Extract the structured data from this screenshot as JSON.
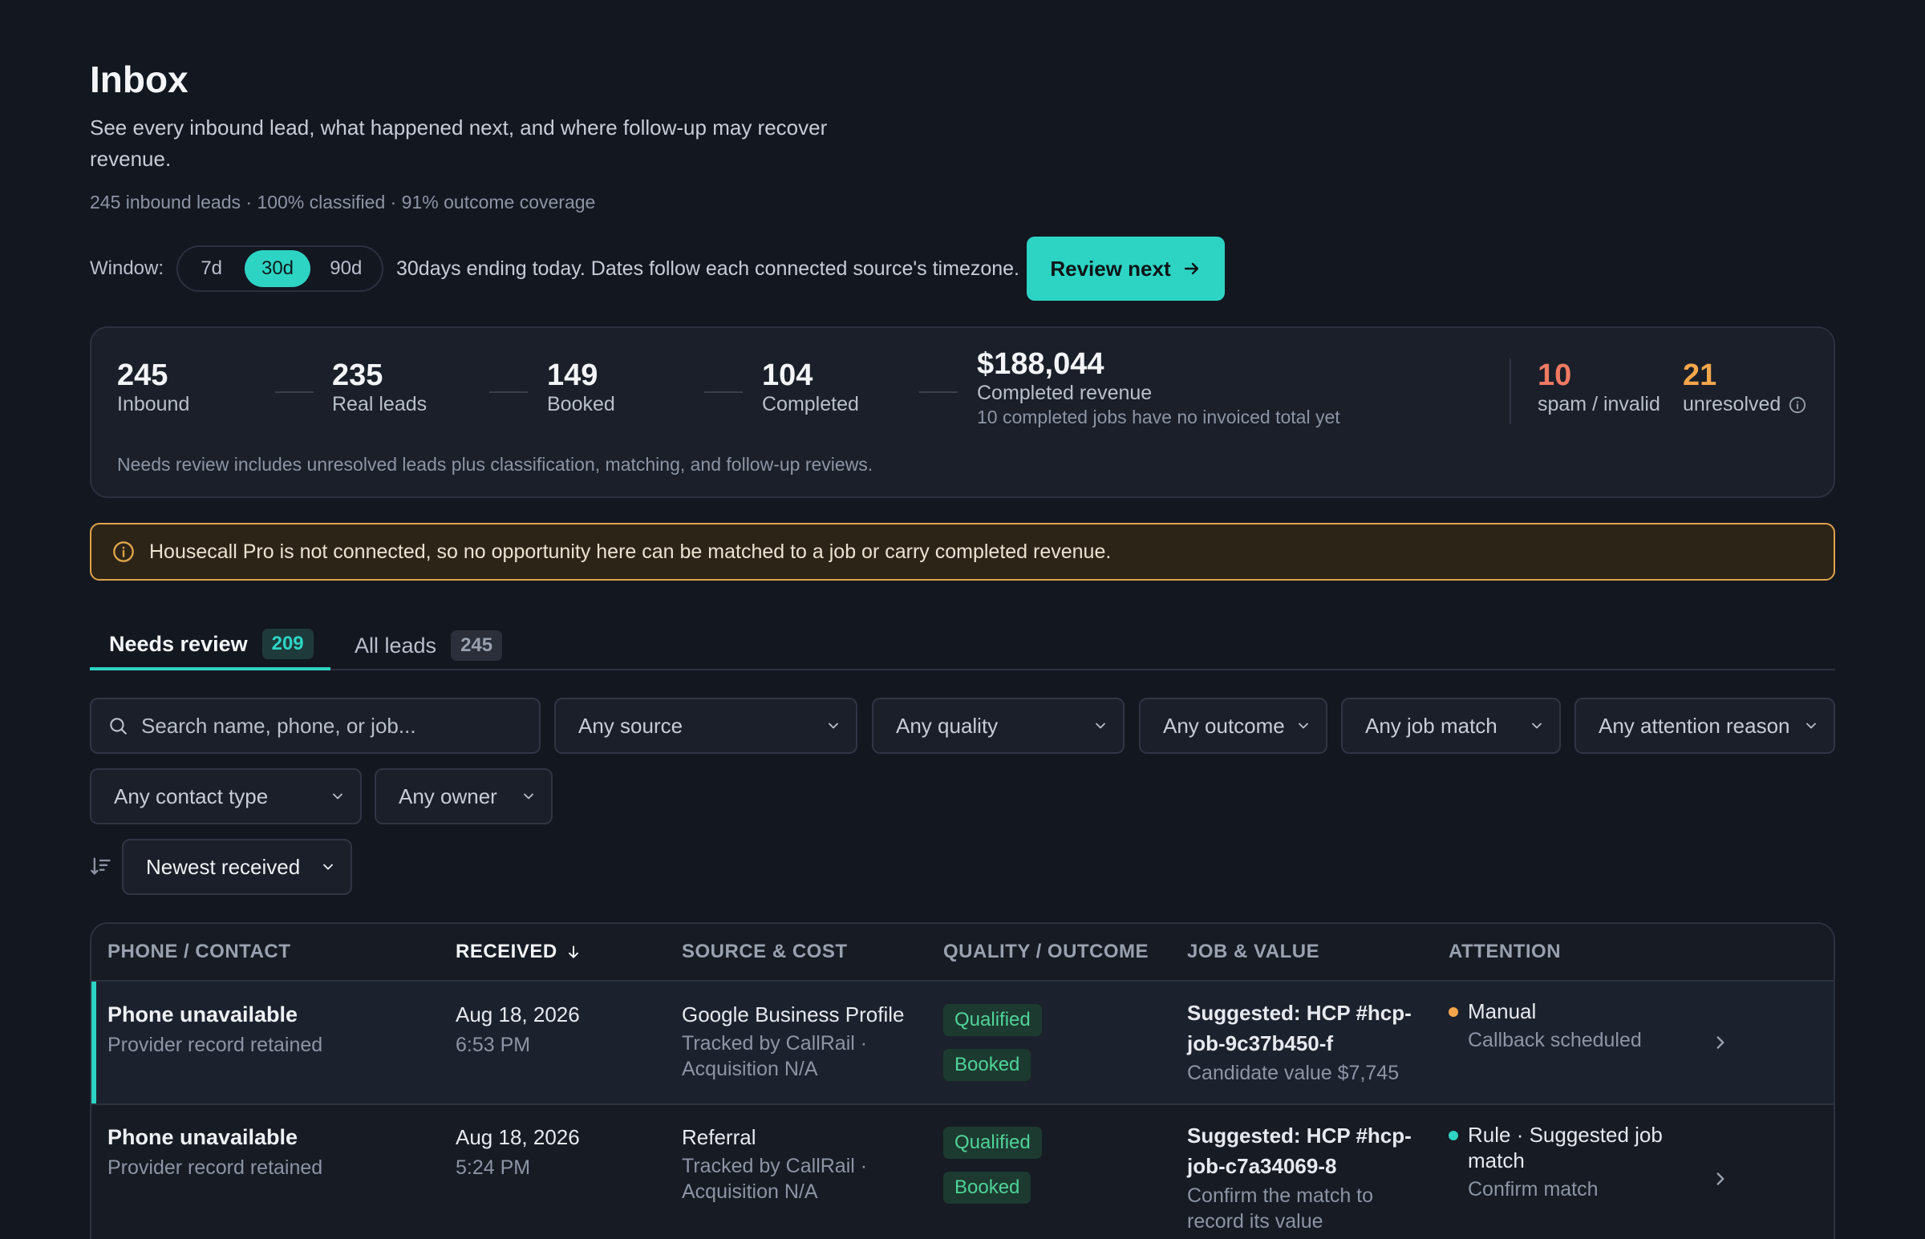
{
  "header": {
    "title": "Inbox",
    "subtitle": "See every inbound lead, what happened next, and where follow-up may recover revenue.",
    "meta": "245 inbound leads · 100% classified · 91% outcome coverage"
  },
  "window": {
    "label": "Window:",
    "options": [
      "7d",
      "30d",
      "90d"
    ],
    "selected": "30d",
    "note": "30days ending today. Dates follow each connected source's timezone.",
    "review_button": "Review next"
  },
  "stats": {
    "items": [
      {
        "value": "245",
        "label": "Inbound"
      },
      {
        "value": "235",
        "label": "Real leads"
      },
      {
        "value": "149",
        "label": "Booked"
      },
      {
        "value": "104",
        "label": "Completed"
      }
    ],
    "revenue": {
      "value": "$188,044",
      "label": "Completed revenue",
      "note": "10 completed jobs have no invoiced total yet"
    },
    "spam": {
      "value": "10",
      "label": "spam / invalid"
    },
    "unresolved": {
      "value": "21",
      "label": "unresolved"
    },
    "footnote": "Needs review includes unresolved leads plus classification, matching, and follow-up reviews."
  },
  "warning": {
    "text": "Housecall Pro is not connected, so no opportunity here can be matched to a job or carry completed revenue."
  },
  "tabs": [
    {
      "label": "Needs review",
      "count": "209"
    },
    {
      "label": "All leads",
      "count": "245"
    }
  ],
  "filters": {
    "search_placeholder": "Search name, phone, or job...",
    "source": "Any source",
    "quality": "Any quality",
    "outcome": "Any outcome",
    "job_match": "Any job match",
    "attention": "Any attention reason",
    "contact_type": "Any contact type",
    "owner": "Any owner",
    "sort": "Newest received"
  },
  "table": {
    "columns": [
      "PHONE / CONTACT",
      "RECEIVED",
      "SOURCE & COST",
      "QUALITY / OUTCOME",
      "JOB & VALUE",
      "ATTENTION"
    ],
    "rows": [
      {
        "contact": "Phone unavailable",
        "contact_sub": "Provider record retained",
        "date": "Aug 18, 2026",
        "time": "6:53 PM",
        "source": "Google Business Profile",
        "source_sub": "Tracked by CallRail · Acquisition N/A",
        "quality": "Qualified",
        "outcome": "Booked",
        "job": "Suggested: HCP #hcp-job-9c37b450-f",
        "job_sub": "Candidate value $7,745",
        "attention": "Manual",
        "attention_sub": "Callback scheduled",
        "dot_color": "#f5a64b"
      },
      {
        "contact": "Phone unavailable",
        "contact_sub": "Provider record retained",
        "date": "Aug 18, 2026",
        "time": "5:24 PM",
        "source": "Referral",
        "source_sub": "Tracked by CallRail · Acquisition N/A",
        "quality": "Qualified",
        "outcome": "Booked",
        "job": "Suggested: HCP #hcp-job-c7a34069-8",
        "job_sub": "Confirm the match to record its value",
        "attention": "Rule · Suggested job match",
        "attention_sub": "Confirm match",
        "dot_color": "#2dd4c4"
      }
    ]
  },
  "colors": {
    "accent": "#2dd4c4",
    "background": "#131720",
    "warning": "#e0a44a",
    "danger": "#f07a63"
  }
}
